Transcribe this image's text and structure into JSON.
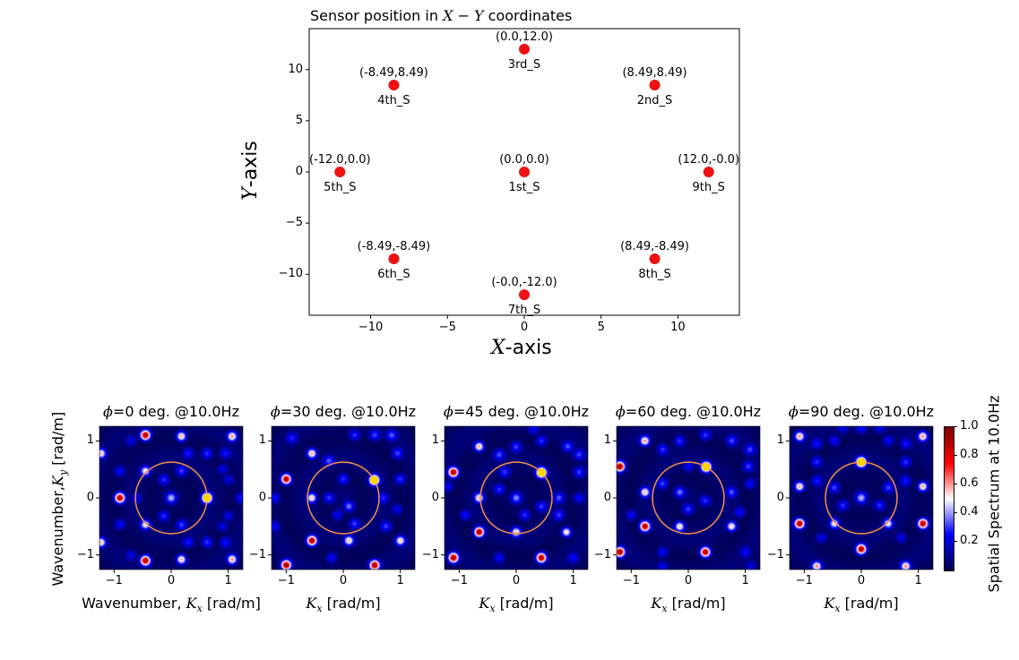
{
  "chart_data": [
    {
      "type": "scatter",
      "title": "Sensor position in X − Y coordinates",
      "title_parts": [
        "Sensor position in ",
        "X − Y",
        " coordinates"
      ],
      "xlabel": "X-axis",
      "xlabel_parts": [
        "X",
        "-axis"
      ],
      "ylabel": "Y-axis",
      "ylabel_parts": [
        "Y",
        "-axis"
      ],
      "xlim": [
        -14,
        14
      ],
      "ylim": [
        -14,
        14
      ],
      "xticks": [
        -10,
        -5,
        0,
        5,
        10
      ],
      "yticks": [
        -10,
        -5,
        0,
        5,
        10
      ],
      "xtick_labels": [
        "−10",
        "−5",
        "0",
        "5",
        "10"
      ],
      "ytick_labels": [
        "−10",
        "−5",
        "0",
        "5",
        "10"
      ],
      "grid": false,
      "marker_color": "#ee1111",
      "points": [
        {
          "name": "1st_S",
          "x": 0.0,
          "y": 0.0,
          "coord_label": "(0.0,0.0)"
        },
        {
          "name": "2nd_S",
          "x": 8.49,
          "y": 8.49,
          "coord_label": "(8.49,8.49)"
        },
        {
          "name": "3rd_S",
          "x": 0.0,
          "y": 12.0,
          "coord_label": "(0.0,12.0)"
        },
        {
          "name": "4th_S",
          "x": -8.49,
          "y": 8.49,
          "coord_label": "(-8.49,8.49)"
        },
        {
          "name": "5th_S",
          "x": -12.0,
          "y": 0.0,
          "coord_label": "(-12.0,0.0)"
        },
        {
          "name": "6th_S",
          "x": -8.49,
          "y": -8.49,
          "coord_label": "(-8.49,-8.49)"
        },
        {
          "name": "7th_S",
          "x": -0.0,
          "y": -12.0,
          "coord_label": "(-0.0,-12.0)"
        },
        {
          "name": "8th_S",
          "x": 8.49,
          "y": -8.49,
          "coord_label": "(8.49,-8.49)"
        },
        {
          "name": "9th_S",
          "x": 12.0,
          "y": -0.0,
          "coord_label": "(12.0,-0.0)"
        }
      ]
    },
    {
      "type": "heatmap",
      "description": "Spatial spectrum (wavenumber domain) for source directions",
      "ylabel": "Wavenumber,K_y [rad/m]",
      "ylabel_parts": [
        "Wavenumber,",
        "K",
        "y",
        " [rad/m]"
      ],
      "xlim": [
        -1.257,
        1.257
      ],
      "ylim": [
        -1.257,
        1.257
      ],
      "xticks": [
        -1,
        0,
        1
      ],
      "yticks": [
        -1,
        0,
        1
      ],
      "tick_labels": [
        "−1",
        "0",
        "1"
      ],
      "circle_radius": 0.628,
      "circle_color": "#e8894c",
      "source_marker_color": "#ffd400",
      "colormap": "seismic",
      "colorbar": {
        "label": "Spatial Spectrum at 10.0Hz",
        "range": [
          0.0,
          1.0
        ],
        "ticks": [
          0.2,
          0.4,
          0.6,
          0.8,
          1.0
        ],
        "tick_labels": [
          "0.2",
          "0.4",
          "0.6",
          "0.8",
          "1.0"
        ]
      },
      "panels": [
        {
          "title": "=0 deg. @10.0Hz",
          "phi_deg": 0,
          "frequency_hz": 10.0,
          "xlabel_prefix": "Wavenumber, ",
          "source_k": [
            0.628,
            0.0
          ],
          "peaks": [
            [
              0.628,
              0.0,
              1.0
            ],
            [
              -0.9,
              0.0,
              0.95
            ],
            [
              -0.45,
              1.1,
              0.95
            ],
            [
              -0.45,
              -1.1,
              0.95
            ],
            [
              0.18,
              1.08,
              0.6
            ],
            [
              0.18,
              -1.08,
              0.6
            ],
            [
              1.07,
              1.08,
              0.6
            ],
            [
              1.07,
              -1.08,
              0.6
            ],
            [
              -1.23,
              0.78,
              0.55
            ],
            [
              -1.23,
              -0.78,
              0.55
            ],
            [
              -0.45,
              0.47,
              0.5
            ],
            [
              -0.45,
              -0.47,
              0.5
            ],
            [
              0.0,
              0.0,
              0.4
            ],
            [
              -0.13,
              0.32,
              0.3
            ],
            [
              -0.13,
              -0.32,
              0.3
            ],
            [
              0.18,
              0.47,
              0.3
            ],
            [
              0.18,
              -0.47,
              0.3
            ],
            [
              0.3,
              0.78,
              0.25
            ],
            [
              0.3,
              -0.78,
              0.25
            ],
            [
              0.63,
              0.78,
              0.3
            ],
            [
              0.63,
              -0.78,
              0.3
            ],
            [
              0.95,
              0.78,
              0.25
            ],
            [
              0.95,
              -0.78,
              0.25
            ],
            [
              -0.9,
              0.47,
              0.25
            ],
            [
              -0.9,
              -0.47,
              0.25
            ],
            [
              1.0,
              0.32,
              0.22
            ],
            [
              1.0,
              -0.32,
              0.22
            ],
            [
              -0.6,
              0.0,
              0.2
            ],
            [
              1.22,
              0.0,
              0.25
            ],
            [
              -0.7,
              1.0,
              0.2
            ],
            [
              -0.7,
              -1.0,
              0.2
            ],
            [
              0.9,
              0.5,
              0.22
            ],
            [
              0.9,
              -0.5,
              0.22
            ]
          ]
        },
        {
          "title": "=30 deg. @10.0Hz",
          "phi_deg": 30,
          "frequency_hz": 10.0,
          "xlabel_prefix": "",
          "source_k": [
            0.544,
            0.314
          ],
          "peaks": [
            [
              0.544,
              0.314,
              1.0
            ],
            [
              -1.0,
              0.33,
              0.95
            ],
            [
              -0.55,
              -0.75,
              0.95
            ],
            [
              -1.0,
              -1.18,
              0.95
            ],
            [
              0.55,
              -1.18,
              0.95
            ],
            [
              -0.55,
              0.78,
              0.6
            ],
            [
              -0.55,
              0.0,
              0.55
            ],
            [
              0.1,
              -0.75,
              0.55
            ],
            [
              1.0,
              -0.75,
              0.55
            ],
            [
              0.2,
              1.1,
              0.3
            ],
            [
              0.55,
              1.1,
              0.3
            ],
            [
              0.85,
              1.1,
              0.3
            ],
            [
              -0.25,
              0.65,
              0.3
            ],
            [
              0.0,
              0.33,
              0.3
            ],
            [
              -0.25,
              0.0,
              0.3
            ],
            [
              0.1,
              -0.15,
              0.35
            ],
            [
              0.2,
              -0.45,
              0.3
            ],
            [
              -0.1,
              -0.3,
              0.25
            ],
            [
              0.75,
              -0.5,
              0.3
            ],
            [
              1.0,
              0.33,
              0.3
            ],
            [
              0.95,
              0.78,
              0.3
            ],
            [
              0.7,
              0.0,
              0.25
            ],
            [
              -0.9,
              1.05,
              0.25
            ],
            [
              -1.2,
              0.0,
              0.25
            ],
            [
              -1.2,
              -0.5,
              0.22
            ],
            [
              -0.2,
              -1.05,
              0.25
            ],
            [
              0.95,
              -0.2,
              0.22
            ]
          ]
        },
        {
          "title": "=45 deg. @10.0Hz",
          "phi_deg": 45,
          "frequency_hz": 10.0,
          "xlabel_prefix": "",
          "source_k": [
            0.444,
            0.444
          ],
          "peaks": [
            [
              0.444,
              0.444,
              1.0
            ],
            [
              -1.1,
              0.45,
              0.95
            ],
            [
              -0.65,
              -0.6,
              0.95
            ],
            [
              -1.1,
              -1.05,
              0.95
            ],
            [
              0.44,
              -1.05,
              0.95
            ],
            [
              -0.65,
              0.9,
              0.6
            ],
            [
              -0.65,
              0.0,
              0.55
            ],
            [
              0.0,
              -0.6,
              0.55
            ],
            [
              0.88,
              -0.6,
              0.55
            ],
            [
              -0.3,
              0.76,
              0.3
            ],
            [
              0.0,
              0.9,
              0.3
            ],
            [
              0.44,
              1.0,
              0.3
            ],
            [
              0.9,
              0.9,
              0.3
            ],
            [
              1.1,
              0.76,
              0.28
            ],
            [
              -0.3,
              0.15,
              0.3
            ],
            [
              0.0,
              0.0,
              0.35
            ],
            [
              0.44,
              -0.15,
              0.3
            ],
            [
              0.15,
              -0.3,
              0.3
            ],
            [
              -0.2,
              0.45,
              0.3
            ],
            [
              1.1,
              0.45,
              0.3
            ],
            [
              1.1,
              0.0,
              0.25
            ],
            [
              0.75,
              0.0,
              0.3
            ],
            [
              0.75,
              -0.3,
              0.28
            ],
            [
              -0.9,
              -0.3,
              0.25
            ],
            [
              -1.2,
              0.2,
              0.22
            ],
            [
              -0.3,
              -1.05,
              0.25
            ],
            [
              1.0,
              -1.05,
              0.22
            ],
            [
              0.3,
              1.2,
              0.22
            ]
          ]
        },
        {
          "title": "=60 deg. @10.0Hz",
          "phi_deg": 60,
          "frequency_hz": 10.0,
          "xlabel_prefix": "",
          "source_k": [
            0.314,
            0.544
          ],
          "peaks": [
            [
              0.314,
              0.544,
              1.0
            ],
            [
              -1.2,
              0.55,
              0.95
            ],
            [
              -0.76,
              -0.5,
              0.95
            ],
            [
              -1.2,
              -0.95,
              0.95
            ],
            [
              0.3,
              -0.95,
              0.95
            ],
            [
              -0.76,
              1.0,
              0.6
            ],
            [
              -0.76,
              0.1,
              0.55
            ],
            [
              -0.15,
              -0.5,
              0.55
            ],
            [
              0.76,
              -0.5,
              0.55
            ],
            [
              -0.45,
              0.85,
              0.3
            ],
            [
              -0.15,
              1.0,
              0.3
            ],
            [
              0.3,
              1.1,
              0.3
            ],
            [
              0.76,
              1.0,
              0.3
            ],
            [
              1.08,
              0.85,
              0.28
            ],
            [
              -0.45,
              0.25,
              0.3
            ],
            [
              -0.15,
              0.1,
              0.35
            ],
            [
              0.3,
              -0.05,
              0.3
            ],
            [
              0.0,
              -0.2,
              0.3
            ],
            [
              0.76,
              0.1,
              0.3
            ],
            [
              1.05,
              0.55,
              0.3
            ],
            [
              1.08,
              0.25,
              0.25
            ],
            [
              0.9,
              -0.25,
              0.25
            ],
            [
              -1.0,
              -0.3,
              0.25
            ],
            [
              0.0,
              0.55,
              0.22
            ],
            [
              -0.45,
              -0.95,
              0.25
            ],
            [
              1.0,
              -0.95,
              0.22
            ],
            [
              -0.45,
              -1.2,
              0.2
            ],
            [
              1.1,
              -1.2,
              0.2
            ]
          ]
        },
        {
          "title": "=90 deg. @10.0Hz",
          "phi_deg": 90,
          "frequency_hz": 10.0,
          "xlabel_prefix": "",
          "source_k": [
            0.0,
            0.628
          ],
          "peaks": [
            [
              0.0,
              0.628,
              1.0
            ],
            [
              0.0,
              -0.9,
              0.95
            ],
            [
              -1.08,
              -0.45,
              0.95
            ],
            [
              1.08,
              -0.45,
              0.95
            ],
            [
              -1.08,
              1.08,
              0.6
            ],
            [
              1.08,
              1.08,
              0.6
            ],
            [
              -1.08,
              0.2,
              0.6
            ],
            [
              1.08,
              0.2,
              0.6
            ],
            [
              -0.78,
              -1.2,
              0.6
            ],
            [
              0.78,
              -1.2,
              0.6
            ],
            [
              -0.47,
              -0.45,
              0.5
            ],
            [
              0.47,
              -0.45,
              0.5
            ],
            [
              0.0,
              0.0,
              0.4
            ],
            [
              -0.32,
              -0.13,
              0.3
            ],
            [
              0.32,
              -0.13,
              0.3
            ],
            [
              -0.47,
              0.18,
              0.3
            ],
            [
              0.47,
              0.18,
              0.3
            ],
            [
              -0.78,
              0.3,
              0.25
            ],
            [
              0.78,
              0.3,
              0.25
            ],
            [
              -0.78,
              0.63,
              0.3
            ],
            [
              0.78,
              0.63,
              0.3
            ],
            [
              -0.78,
              0.95,
              0.25
            ],
            [
              0.78,
              0.95,
              0.25
            ],
            [
              -0.47,
              1.0,
              0.25
            ],
            [
              0.47,
              1.0,
              0.25
            ],
            [
              -0.32,
              1.22,
              0.2
            ],
            [
              0.32,
              1.22,
              0.2
            ],
            [
              -0.7,
              -0.7,
              0.22
            ],
            [
              0.7,
              -0.7,
              0.22
            ],
            [
              0.0,
              1.22,
              0.25
            ]
          ]
        }
      ],
      "xlabel_main": "K_x [rad/m]"
    }
  ]
}
